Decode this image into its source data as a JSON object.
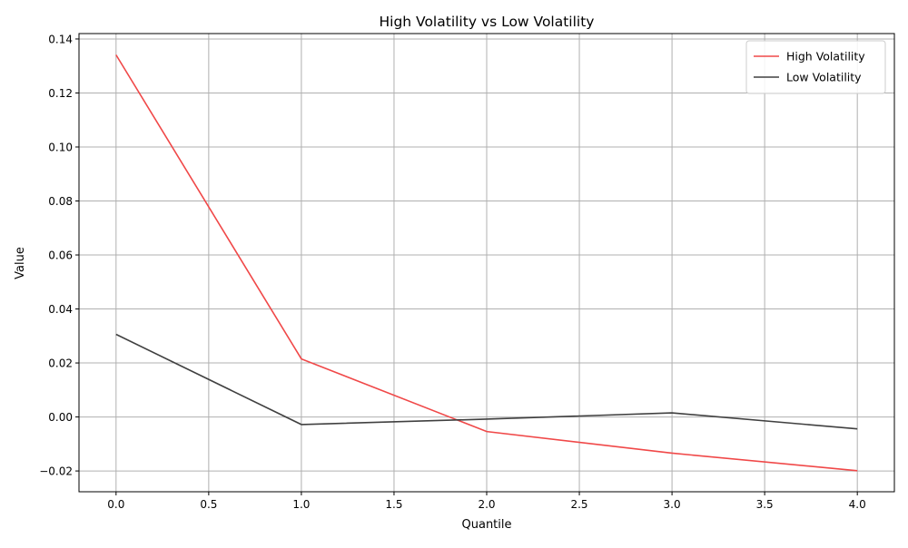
{
  "chart_data": {
    "type": "line",
    "title": "High Volatility vs Low Volatility",
    "xlabel": "Quantile",
    "ylabel": "Value",
    "xlim": [
      -0.2,
      4.2
    ],
    "ylim": [
      -0.0277,
      0.142
    ],
    "x_ticks": [
      0.0,
      0.5,
      1.0,
      1.5,
      2.0,
      2.5,
      3.0,
      3.5,
      4.0
    ],
    "x_tick_labels": [
      "0.0",
      "0.5",
      "1.0",
      "1.5",
      "2.0",
      "2.5",
      "3.0",
      "3.5",
      "4.0"
    ],
    "y_ticks": [
      -0.02,
      0.0,
      0.02,
      0.04,
      0.06,
      0.08,
      0.1,
      0.12,
      0.14
    ],
    "y_tick_labels": [
      "−0.02",
      "0.00",
      "0.02",
      "0.04",
      "0.06",
      "0.08",
      "0.10",
      "0.12",
      "0.14"
    ],
    "grid": true,
    "legend_position": "top-right",
    "x": [
      0,
      1,
      2,
      3,
      4
    ],
    "series": [
      {
        "name": "High Volatility",
        "color": "#f04848",
        "values": [
          0.1341,
          0.0215,
          -0.0054,
          -0.0134,
          -0.0199
        ]
      },
      {
        "name": "Low Volatility",
        "color": "#404040",
        "values": [
          0.0306,
          -0.0028,
          -0.0008,
          0.0015,
          -0.0044
        ]
      }
    ]
  }
}
